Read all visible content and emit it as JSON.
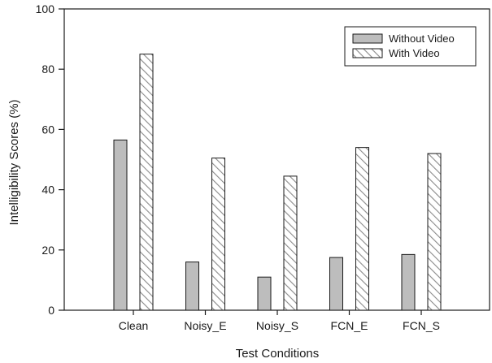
{
  "chart_data": {
    "type": "bar",
    "title": "",
    "xlabel": "Test Conditions",
    "ylabel": "Intelligibility Scores (%)",
    "ylim": [
      0,
      100
    ],
    "yticks": [
      "0",
      "20",
      "40",
      "60",
      "80",
      "100"
    ],
    "grid": false,
    "legend_position": "top-right",
    "categories": [
      "Clean",
      "Noisy_E",
      "Noisy_S",
      "FCN_E",
      "FCN_S"
    ],
    "series": [
      {
        "name": "Without Video",
        "values": [
          56.5,
          16,
          11,
          17.5,
          18.5
        ],
        "color": "#bdbdbd",
        "pattern": "solid"
      },
      {
        "name": "With Video",
        "values": [
          85,
          50.5,
          44.5,
          54,
          52
        ],
        "color": "#ffffff",
        "pattern": "diagonal-hatch"
      }
    ]
  }
}
